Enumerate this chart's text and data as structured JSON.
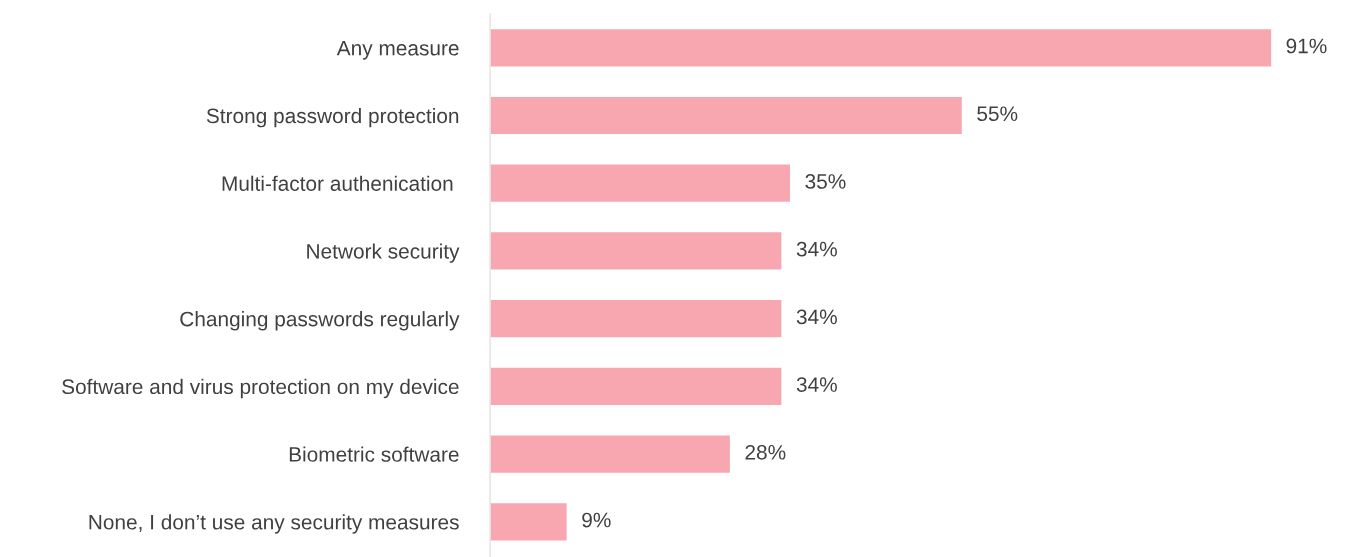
{
  "chart_data": {
    "type": "bar",
    "orientation": "horizontal",
    "categories": [
      "Any measure",
      "Strong password protection",
      "Multi-factor authenication ",
      "Network security",
      "Changing passwords regularly",
      "Software and virus protection on my device",
      "Biometric software",
      "None, I don’t use any security measures"
    ],
    "values": [
      91,
      55,
      35,
      34,
      34,
      34,
      28,
      9
    ],
    "value_labels": [
      "91%",
      "55%",
      "35%",
      "34%",
      "34%",
      "34%",
      "28%",
      "9%"
    ],
    "color": "#f8a7b0",
    "grid": false,
    "legend": false
  }
}
